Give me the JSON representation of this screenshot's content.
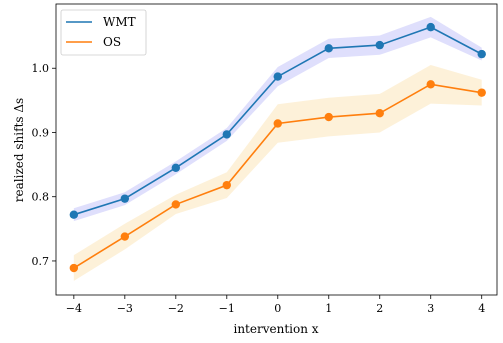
{
  "chart_data": {
    "type": "line",
    "title": "",
    "xlabel": "intervention x",
    "ylabel": "realized shifts Δs",
    "x": [
      -4,
      -3,
      -2,
      -1,
      0,
      1,
      2,
      3,
      4
    ],
    "x_ticks": [
      "−4",
      "−3",
      "−2",
      "−1",
      "0",
      "1",
      "2",
      "3",
      "4"
    ],
    "y_ticks": [
      "0.7",
      "0.8",
      "0.9",
      "1.0"
    ],
    "y_tick_values": [
      0.7,
      0.8,
      0.9,
      1.0
    ],
    "xlim": [
      -4.35,
      4.3
    ],
    "ylim": [
      0.647,
      1.1
    ],
    "grid": false,
    "legend_position": "top-left",
    "series": [
      {
        "name": "WMT",
        "color": "#1f77b4",
        "band_color": "#d9d9fb",
        "values": [
          0.772,
          0.797,
          0.845,
          0.897,
          0.987,
          1.031,
          1.036,
          1.064,
          1.022
        ],
        "lower": [
          0.762,
          0.787,
          0.835,
          0.887,
          0.972,
          1.016,
          1.021,
          1.048,
          1.012
        ],
        "upper": [
          0.782,
          0.807,
          0.855,
          0.907,
          1.002,
          1.046,
          1.051,
          1.08,
          1.032
        ]
      },
      {
        "name": "OS",
        "color": "#ff7f0e",
        "band_color": "#fdeed2",
        "values": [
          0.689,
          0.738,
          0.788,
          0.818,
          0.914,
          0.924,
          0.93,
          0.975,
          0.962
        ],
        "lower": [
          0.669,
          0.718,
          0.773,
          0.798,
          0.884,
          0.894,
          0.9,
          0.945,
          0.942
        ],
        "upper": [
          0.709,
          0.758,
          0.803,
          0.838,
          0.944,
          0.954,
          0.96,
          1.005,
          0.982
        ]
      }
    ]
  }
}
